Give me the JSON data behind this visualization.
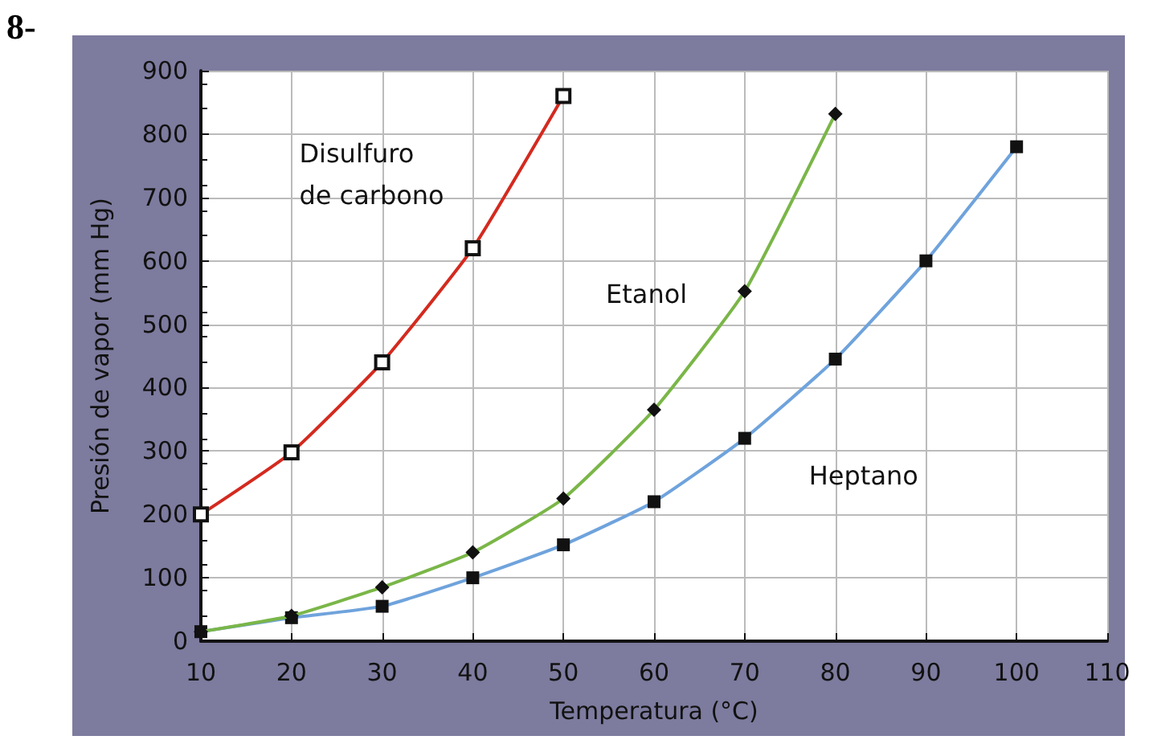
{
  "chart_data": {
    "type": "line",
    "xlabel": "Temperatura (°C)",
    "ylabel": "Presión de vapor (mm Hg)",
    "annotations": [
      "8-"
    ],
    "xlim": [
      10,
      110
    ],
    "xticks": [
      10,
      20,
      30,
      40,
      50,
      60,
      70,
      80,
      90,
      100,
      110
    ],
    "ylim": [
      0,
      900
    ],
    "yticks": [
      0,
      100,
      200,
      300,
      400,
      500,
      600,
      700,
      800,
      900
    ],
    "grid": true,
    "legend": false,
    "series": [
      {
        "name": "Disulfuro de carbono",
        "color": "#d42a1f",
        "marker": "square",
        "x": [
          10,
          20,
          30,
          40,
          50
        ],
        "values": [
          200,
          298,
          440,
          620,
          860
        ]
      },
      {
        "name": "Etanol",
        "color": "#7ab648",
        "marker": "diamond",
        "x": [
          10,
          20,
          30,
          40,
          50,
          60,
          70,
          80
        ],
        "values": [
          15,
          40,
          85,
          140,
          225,
          365,
          552,
          832
        ]
      },
      {
        "name": "Heptano",
        "color": "#6fa3dc",
        "marker": "square",
        "x": [
          10,
          20,
          30,
          40,
          50,
          60,
          70,
          80,
          90,
          100
        ],
        "values": [
          15,
          37,
          55,
          100,
          152,
          220,
          320,
          445,
          600,
          780
        ]
      }
    ]
  }
}
